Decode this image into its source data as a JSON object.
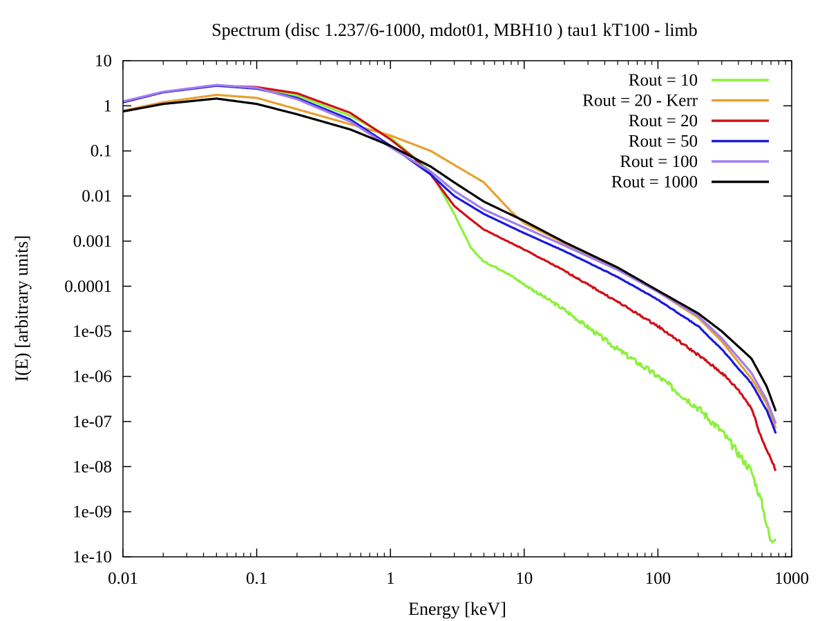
{
  "chart_data": {
    "type": "line",
    "title": "Spectrum (disc 1.237/6-1000, mdot01, MBH10 ) tau1 kT100 - limb",
    "xlabel": "Energy [keV]",
    "ylabel": "I(E) [arbitrary units]",
    "xscale": "log",
    "yscale": "log",
    "xlim": [
      0.01,
      1000
    ],
    "ylim": [
      1e-10,
      10
    ],
    "legend_position": "top-right",
    "x_ticks": [
      {
        "value": 0.01,
        "label": "0.01"
      },
      {
        "value": 0.1,
        "label": "0.1"
      },
      {
        "value": 1,
        "label": "1"
      },
      {
        "value": 10,
        "label": "10"
      },
      {
        "value": 100,
        "label": "100"
      },
      {
        "value": 1000,
        "label": "1000"
      }
    ],
    "y_ticks": [
      {
        "value": 10,
        "label": "10"
      },
      {
        "value": 1,
        "label": "1"
      },
      {
        "value": 0.1,
        "label": "0.1"
      },
      {
        "value": 0.01,
        "label": "0.01"
      },
      {
        "value": 0.001,
        "label": "0.001"
      },
      {
        "value": 0.0001,
        "label": "0.0001"
      },
      {
        "value": 1e-05,
        "label": "1e-05"
      },
      {
        "value": 1e-06,
        "label": "1e-06"
      },
      {
        "value": 1e-07,
        "label": "1e-07"
      },
      {
        "value": 1e-08,
        "label": "1e-08"
      },
      {
        "value": 1e-09,
        "label": "1e-09"
      },
      {
        "value": 1e-10,
        "label": "1e-10"
      }
    ],
    "series": [
      {
        "name": "Rout = 10",
        "color": "#8cf03c",
        "noise": 0.09,
        "points": [
          [
            0.01,
            1.2
          ],
          [
            0.02,
            2.0
          ],
          [
            0.05,
            2.8
          ],
          [
            0.1,
            2.5
          ],
          [
            0.2,
            1.7
          ],
          [
            0.5,
            0.6
          ],
          [
            1,
            0.2
          ],
          [
            2,
            0.035
          ],
          [
            3,
            0.004
          ],
          [
            4,
            0.0007
          ],
          [
            5,
            0.00035
          ],
          [
            7,
            0.00022
          ],
          [
            10,
            0.00011
          ],
          [
            20,
            3e-05
          ],
          [
            50,
            4e-06
          ],
          [
            100,
            1e-06
          ],
          [
            200,
            2e-07
          ],
          [
            300,
            6e-08
          ],
          [
            500,
            8e-09
          ],
          [
            600,
            1.5e-09
          ],
          [
            700,
            2e-10
          ],
          [
            760,
            3e-10
          ]
        ]
      },
      {
        "name": "Rout = 20 - Kerr",
        "color": "#e8a030",
        "noise": 0,
        "points": [
          [
            0.01,
            0.78
          ],
          [
            0.02,
            1.2
          ],
          [
            0.05,
            1.75
          ],
          [
            0.1,
            1.5
          ],
          [
            0.3,
            0.6
          ],
          [
            1,
            0.22
          ],
          [
            2,
            0.1
          ],
          [
            5,
            0.02
          ],
          [
            8,
            0.0045
          ],
          [
            10,
            0.0025
          ],
          [
            20,
            0.0009
          ],
          [
            50,
            0.00024
          ],
          [
            100,
            7.5e-05
          ],
          [
            200,
            2e-05
          ],
          [
            300,
            6e-06
          ],
          [
            500,
            9e-07
          ],
          [
            650,
            2.5e-07
          ],
          [
            760,
            7e-08
          ]
        ]
      },
      {
        "name": "Rout = 20",
        "color": "#d01018",
        "noise": 0.03,
        "points": [
          [
            0.01,
            1.2
          ],
          [
            0.02,
            2.0
          ],
          [
            0.05,
            2.8
          ],
          [
            0.1,
            2.6
          ],
          [
            0.2,
            1.9
          ],
          [
            0.5,
            0.7
          ],
          [
            1,
            0.18
          ],
          [
            1.5,
            0.07
          ],
          [
            2,
            0.03
          ],
          [
            3,
            0.006
          ],
          [
            4,
            0.003
          ],
          [
            5,
            0.0018
          ],
          [
            10,
            0.00065
          ],
          [
            20,
            0.00022
          ],
          [
            50,
            4.5e-05
          ],
          [
            100,
            1.3e-05
          ],
          [
            200,
            3e-06
          ],
          [
            300,
            1.2e-06
          ],
          [
            400,
            5e-07
          ],
          [
            500,
            2e-07
          ],
          [
            600,
            4e-08
          ],
          [
            700,
            1.5e-08
          ],
          [
            760,
            8e-09
          ]
        ]
      },
      {
        "name": "Rout = 50",
        "color": "#1a1ae0",
        "noise": 0.01,
        "points": [
          [
            0.01,
            1.2
          ],
          [
            0.02,
            2.0
          ],
          [
            0.05,
            2.8
          ],
          [
            0.1,
            2.4
          ],
          [
            0.2,
            1.5
          ],
          [
            0.5,
            0.5
          ],
          [
            1,
            0.13
          ],
          [
            2,
            0.03
          ],
          [
            3,
            0.01
          ],
          [
            5,
            0.004
          ],
          [
            10,
            0.0015
          ],
          [
            20,
            0.0006
          ],
          [
            50,
            0.00016
          ],
          [
            100,
            5e-05
          ],
          [
            200,
            1.3e-05
          ],
          [
            300,
            4e-06
          ],
          [
            500,
            7e-07
          ],
          [
            650,
            1.8e-07
          ],
          [
            760,
            5.5e-08
          ]
        ]
      },
      {
        "name": "Rout = 100",
        "color": "#a07ef0",
        "noise": 0,
        "points": [
          [
            0.01,
            1.25
          ],
          [
            0.02,
            2.05
          ],
          [
            0.05,
            2.9
          ],
          [
            0.1,
            2.5
          ],
          [
            0.2,
            1.4
          ],
          [
            0.5,
            0.45
          ],
          [
            1,
            0.12
          ],
          [
            2,
            0.035
          ],
          [
            3,
            0.013
          ],
          [
            5,
            0.005
          ],
          [
            10,
            0.002
          ],
          [
            20,
            0.0008
          ],
          [
            50,
            0.00023
          ],
          [
            100,
            7.5e-05
          ],
          [
            200,
            2.2e-05
          ],
          [
            300,
            7e-06
          ],
          [
            500,
            1.2e-06
          ],
          [
            650,
            3e-07
          ],
          [
            760,
            9e-08
          ]
        ]
      },
      {
        "name": "Rout = 1000",
        "color": "#000000",
        "noise": 0,
        "points": [
          [
            0.01,
            0.75
          ],
          [
            0.02,
            1.1
          ],
          [
            0.05,
            1.45
          ],
          [
            0.1,
            1.1
          ],
          [
            0.2,
            0.65
          ],
          [
            0.5,
            0.3
          ],
          [
            1,
            0.13
          ],
          [
            2,
            0.045
          ],
          [
            3,
            0.02
          ],
          [
            5,
            0.0075
          ],
          [
            10,
            0.0028
          ],
          [
            20,
            0.00095
          ],
          [
            50,
            0.00026
          ],
          [
            100,
            8e-05
          ],
          [
            200,
            2.5e-05
          ],
          [
            300,
            1e-05
          ],
          [
            500,
            2.5e-06
          ],
          [
            650,
            6e-07
          ],
          [
            760,
            1.7e-07
          ]
        ]
      }
    ]
  }
}
